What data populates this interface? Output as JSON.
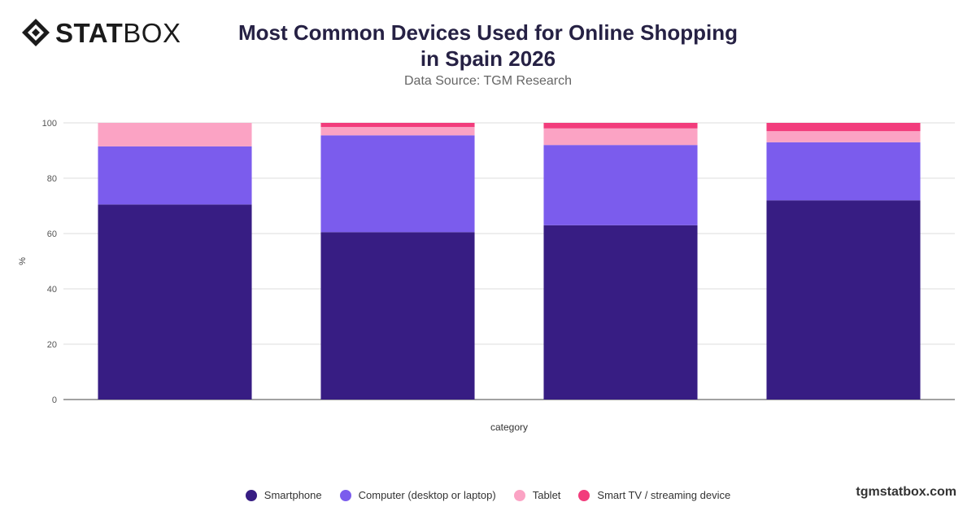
{
  "brand": {
    "stat": "STAT",
    "box": "BOX",
    "website": "tgmstatbox.com"
  },
  "chart_data": {
    "type": "bar",
    "stacked": true,
    "title": "Most Common Devices Used for Online Shopping in Spain 2026",
    "subtitle": "Data Source: TGM Research",
    "xlabel": "category",
    "ylabel": "%",
    "ylim": [
      0,
      100
    ],
    "yticks": [
      0,
      20,
      40,
      60,
      80,
      100
    ],
    "grid": true,
    "legend_position": "bottom",
    "categories": [
      "",
      "",
      "",
      ""
    ],
    "series": [
      {
        "name": "Smartphone",
        "color": "#371d83",
        "values": [
          70.5,
          60.5,
          63,
          72
        ]
      },
      {
        "name": "Computer (desktop or laptop)",
        "color": "#7b5ced",
        "values": [
          21,
          35,
          29,
          21
        ]
      },
      {
        "name": "Tablet",
        "color": "#fba3c4",
        "values": [
          8.5,
          3,
          6,
          4
        ]
      },
      {
        "name": "Smart TV / streaming device",
        "color": "#f23c7c",
        "values": [
          0,
          1.5,
          2,
          3
        ]
      }
    ]
  }
}
